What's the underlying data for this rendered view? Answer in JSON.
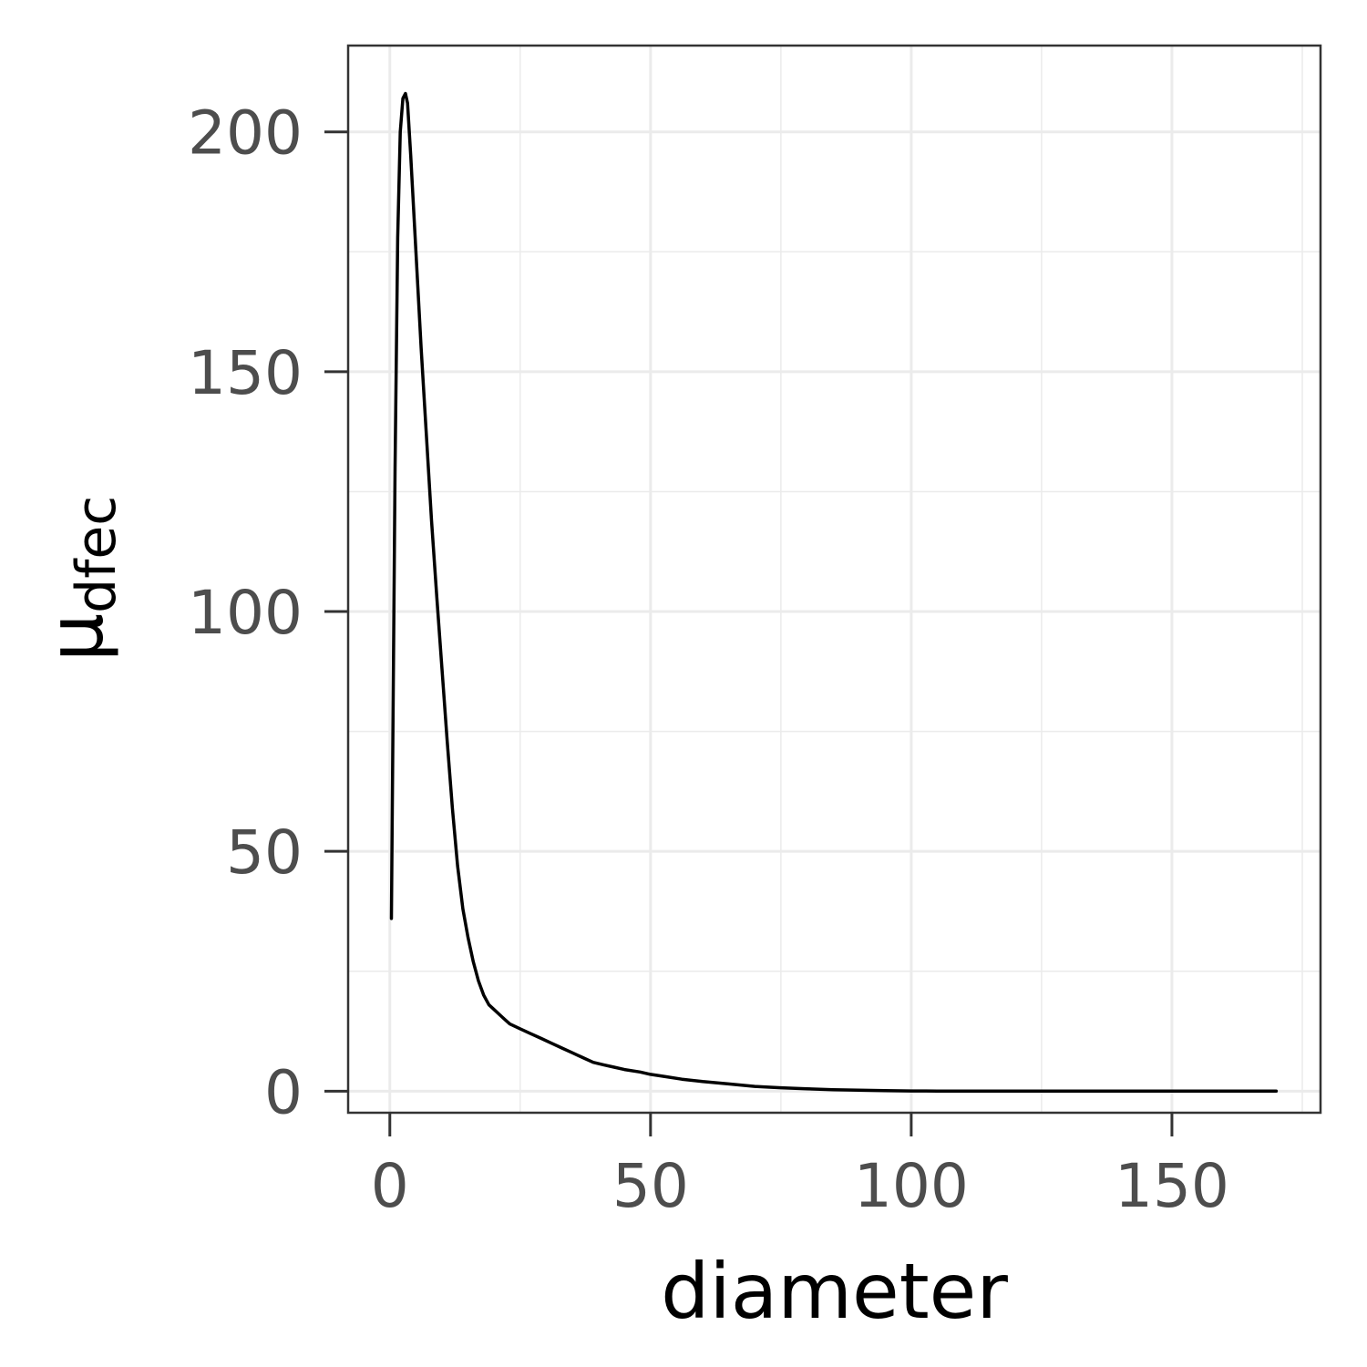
{
  "chart_data": {
    "type": "line",
    "title": "",
    "xlabel": "diameter",
    "ylabel": "μ",
    "ylabel_subscript": "dfec",
    "xlim": [
      -8,
      178.5
    ],
    "ylim": [
      -4.5,
      218
    ],
    "x_ticks": [
      {
        "value": 0,
        "label": "0"
      },
      {
        "value": 50,
        "label": "50"
      },
      {
        "value": 100,
        "label": "100"
      },
      {
        "value": 150,
        "label": "150"
      }
    ],
    "y_ticks": [
      {
        "value": 0,
        "label": "0"
      },
      {
        "value": 50,
        "label": "50"
      },
      {
        "value": 100,
        "label": "100"
      },
      {
        "value": 150,
        "label": "150"
      },
      {
        "value": 200,
        "label": "200"
      }
    ],
    "x_minor": [
      25,
      75,
      125,
      175
    ],
    "y_minor": [
      25,
      75,
      125,
      175
    ],
    "grid": true,
    "colors": {
      "line": "#000000",
      "grid": "#ebebeb",
      "panel_border": "#333333",
      "tick_text": "#4d4d4d",
      "background": "#ffffff"
    },
    "series": [
      {
        "x": [
          0.3,
          1.0,
          1.5,
          2.0,
          2.5,
          3.0,
          3.4,
          4.0,
          5.0,
          6.0,
          7.0,
          8.0,
          9.0,
          10.0,
          11.0,
          12.0,
          13.0,
          14.0,
          15.0,
          16.0,
          17.0,
          18.0,
          19.0,
          20.0,
          21.0,
          22.0,
          23.0,
          25.0,
          27.0,
          29.0,
          31.0,
          33.0,
          35.0,
          37.0,
          39.0,
          41.0,
          43.0,
          45.0,
          48.0,
          50.0,
          53.0,
          56.0,
          60.0,
          65.0,
          70.0,
          75.0,
          80.0,
          85.0,
          90.0,
          95.0,
          100.0,
          105.0,
          110.0,
          115.0,
          120.0,
          125.0,
          130.0,
          133.0,
          135.0,
          138.0,
          140.0,
          145.0,
          150.0,
          152.0,
          154.0,
          156.0,
          158.0,
          160.0,
          163.0,
          165.0,
          168.0,
          170.0
        ],
        "y": [
          36,
          130,
          178,
          200,
          207,
          208,
          206,
          195,
          175,
          155,
          137,
          119,
          103,
          88,
          73,
          59,
          47,
          38,
          32,
          27,
          23,
          20,
          18,
          17,
          16,
          15,
          14,
          13,
          12,
          11,
          10,
          9,
          8,
          7,
          6,
          5.5,
          5,
          4.5,
          4,
          3.5,
          3,
          2.5,
          2.0,
          1.5,
          1.0,
          0.7,
          0.5,
          0.3,
          0.2,
          0.1,
          0.05,
          0.02,
          0.01,
          0.01,
          0.01,
          0.01,
          0.0,
          0.0,
          0.0,
          0.0,
          0.0,
          0.0,
          0.0,
          0.0,
          0.0,
          0.0,
          0.0,
          0.0,
          0.0,
          0.0,
          0.0,
          0.0
        ]
      }
    ]
  }
}
